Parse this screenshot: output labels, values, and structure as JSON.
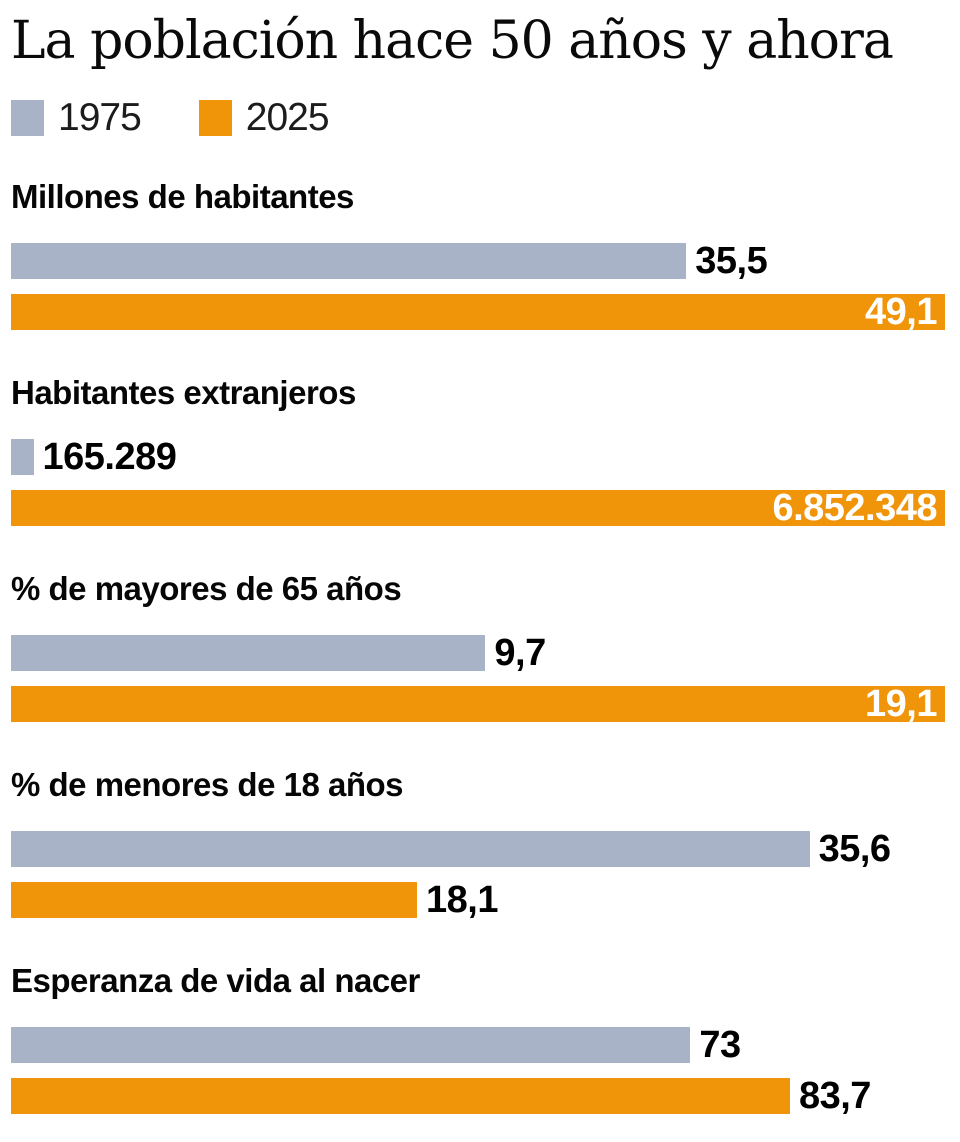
{
  "title": "La población hace 50 años y ahora",
  "legend": {
    "items": [
      {
        "label": "1975",
        "color": "#A9B3C8"
      },
      {
        "label": "2025",
        "color": "#F0940A"
      }
    ]
  },
  "colors": {
    "series_1975": "#A9B3C8",
    "series_2025": "#F0940A",
    "value_label_dark": "#000000",
    "value_label_light": "#FFFFFF",
    "background": "#FFFFFF"
  },
  "chart_data": {
    "type": "bar",
    "orientation": "horizontal",
    "title": "La población hace 50 años y ahora",
    "grid": false,
    "legend_position": "top-left",
    "series_names": [
      "1975",
      "2025"
    ],
    "sections": [
      {
        "label": "Millones de habitantes",
        "scale_max": 49.1,
        "max_width_frac": 1.0,
        "bars": [
          {
            "series": "1975",
            "value": 35.5,
            "display": "35,5",
            "label_inside": false
          },
          {
            "series": "2025",
            "value": 49.1,
            "display": "49,1",
            "label_inside": true
          }
        ]
      },
      {
        "label": "Habitantes extranjeros",
        "scale_max": 6852348,
        "max_width_frac": 1.0,
        "bars": [
          {
            "series": "1975",
            "value": 165289,
            "display": "165.289",
            "label_inside": false
          },
          {
            "series": "2025",
            "value": 6852348,
            "display": "6.852.348",
            "label_inside": true
          }
        ]
      },
      {
        "label": "% de mayores de 65 años",
        "scale_max": 19.1,
        "max_width_frac": 1.0,
        "bars": [
          {
            "series": "1975",
            "value": 9.7,
            "display": "9,7",
            "label_inside": false
          },
          {
            "series": "2025",
            "value": 19.1,
            "display": "19,1",
            "label_inside": true
          }
        ]
      },
      {
        "label": "% de menores de 18 años",
        "scale_max": 35.6,
        "max_width_frac": 0.855,
        "bars": [
          {
            "series": "1975",
            "value": 35.6,
            "display": "35,6",
            "label_inside": false
          },
          {
            "series": "2025",
            "value": 18.1,
            "display": "18,1",
            "label_inside": false
          }
        ]
      },
      {
        "label": "Esperanza de vida al nacer",
        "scale_max": 83.7,
        "max_width_frac": 0.834,
        "bars": [
          {
            "series": "1975",
            "value": 73,
            "display": "73",
            "label_inside": false
          },
          {
            "series": "2025",
            "value": 83.7,
            "display": "83,7",
            "label_inside": false
          }
        ]
      }
    ]
  }
}
